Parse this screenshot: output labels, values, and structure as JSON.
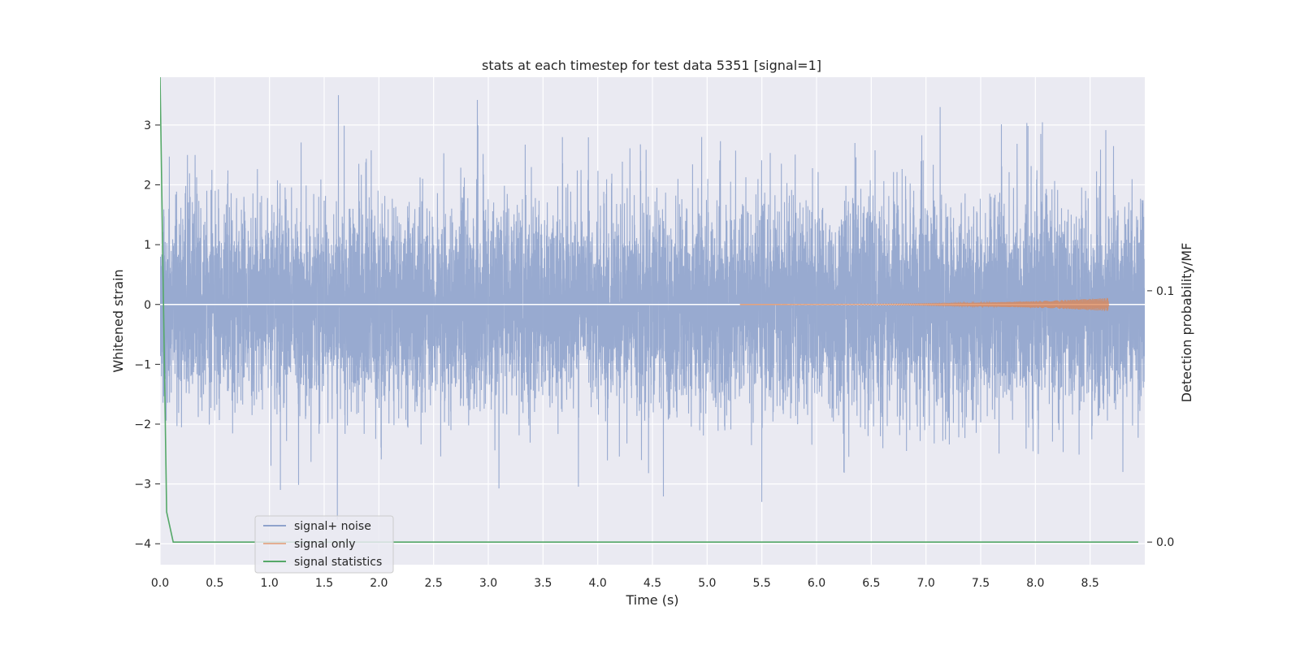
{
  "chart_data": {
    "type": "line",
    "title": "stats at each timestep for test data 5351 [signal=1]",
    "xlabel": "Time (s)",
    "ylabel": "Whitened strain",
    "y2label": "Detection probability/MF",
    "xlim": [
      0,
      9.0
    ],
    "ylim": [
      -4.35,
      3.8
    ],
    "y2lim": [
      -0.009,
      0.185
    ],
    "x_ticks": [
      0.0,
      0.5,
      1.0,
      1.5,
      2.0,
      2.5,
      3.0,
      3.5,
      4.0,
      4.5,
      5.0,
      5.5,
      6.0,
      6.5,
      7.0,
      7.5,
      8.0,
      8.5
    ],
    "x_tick_labels": [
      "0.0",
      "0.5",
      "1.0",
      "1.5",
      "2.0",
      "2.5",
      "3.0",
      "3.5",
      "4.0",
      "4.5",
      "5.0",
      "5.5",
      "6.0",
      "6.5",
      "7.0",
      "7.5",
      "8.0",
      "8.5"
    ],
    "y_ticks": [
      -4,
      -3,
      -2,
      -1,
      0,
      1,
      2,
      3
    ],
    "y_tick_labels": [
      "−4",
      "−3",
      "−2",
      "−1",
      "0",
      "1",
      "2",
      "3"
    ],
    "y2_ticks": [
      0.0,
      0.1
    ],
    "y2_tick_labels": [
      "0.0",
      "0.1"
    ],
    "grid": true,
    "legend_position": "lower-left",
    "series": [
      {
        "name": "signal+ noise",
        "color": "#8fa3cc",
        "kind": "noise",
        "axis": "left",
        "sample_rate": 2048,
        "std": 0.85,
        "peaks": [
          {
            "x": 0.25,
            "y": 2.5
          },
          {
            "x": 0.32,
            "y": 2.5
          },
          {
            "x": 1.1,
            "y": -3.1
          },
          {
            "x": 1.63,
            "y": 3.5
          },
          {
            "x": 1.62,
            "y": -3.6
          },
          {
            "x": 2.9,
            "y": 3.42
          },
          {
            "x": 4.95,
            "y": 2.8
          },
          {
            "x": 5.5,
            "y": -3.3
          },
          {
            "x": 6.35,
            "y": 2.7
          },
          {
            "x": 7.13,
            "y": 3.3
          },
          {
            "x": 8.05,
            "y": 2.85
          },
          {
            "x": 8.8,
            "y": -2.8
          },
          {
            "x": 6.25,
            "y": -2.8
          },
          {
            "x": 4.4,
            "y": -2.6
          }
        ]
      },
      {
        "name": "signal only",
        "color": "#dd8452",
        "kind": "chirp",
        "axis": "left",
        "x_start": 5.3,
        "x_end": 8.67,
        "amp_end": 0.11
      },
      {
        "name": "signal statistics",
        "color": "#55a868",
        "kind": "line",
        "axis": "right",
        "x": [
          0.0,
          0.06,
          0.12,
          0.5,
          1.0,
          2.0,
          3.0,
          4.0,
          5.0,
          6.0,
          7.0,
          8.0,
          8.94
        ],
        "y": [
          0.185,
          0.012,
          0.0,
          0.0,
          0.0,
          0.0,
          0.0,
          0.0,
          0.0,
          0.0,
          0.0,
          0.0,
          0.0
        ]
      }
    ]
  }
}
